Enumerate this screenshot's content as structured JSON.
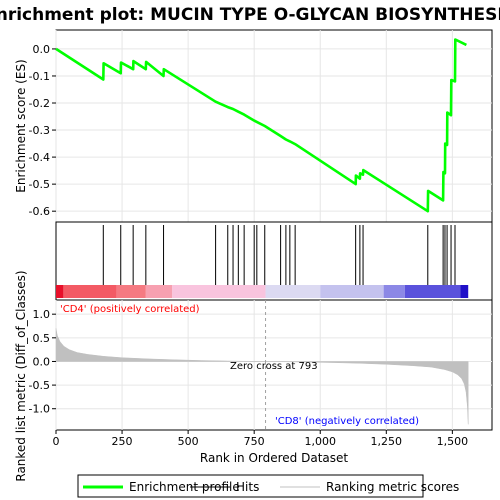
{
  "chart_data": {
    "type": "line",
    "title": "Enrichment plot: MUCIN TYPE O-GLYCAN BIOSYNTHESIS",
    "xlabel": "Rank in Ordered Dataset",
    "ylabel_top": "Enrichment score (ES)",
    "ylabel_bottom": "Ranked list metric (Diff_of_Classes)",
    "xlim": [
      0,
      1650
    ],
    "x_ticks": [
      0,
      250,
      500,
      750,
      1000,
      1250,
      1500
    ],
    "x_tick_labels": [
      "0",
      "250",
      "500",
      "750",
      "1,000",
      "1,250",
      "1,500"
    ],
    "es_ylim": [
      -0.64,
      0.07
    ],
    "es_ticks": [
      0.0,
      -0.1,
      -0.2,
      -0.3,
      -0.4,
      -0.5,
      -0.6
    ],
    "es_tick_labels": [
      "0.0",
      "-0.1",
      "-0.2",
      "-0.3",
      "-0.4",
      "-0.5",
      "-0.6"
    ],
    "metric_ylim": [
      -1.45,
      1.3
    ],
    "metric_ticks": [
      1.0,
      0.5,
      0.0,
      -0.5,
      -1.0
    ],
    "metric_tick_labels": [
      "1.0",
      "0.5",
      "0.0",
      "-0.5",
      "-1.0"
    ],
    "series": [
      {
        "name": "Enrichment profile",
        "color": "#00ff00",
        "x": [
          0,
          179,
          180,
          245,
          246,
          292,
          293,
          340,
          341,
          407,
          408,
          604,
          650,
          670,
          690,
          712,
          750,
          760,
          790,
          850,
          870,
          885,
          905,
          1134,
          1135,
          1150,
          1151,
          1162,
          1163,
          1407,
          1408,
          1465,
          1466,
          1472,
          1473,
          1480,
          1481,
          1495,
          1496,
          1510,
          1511,
          1553
        ],
        "y": [
          0.0,
          -0.113,
          -0.053,
          -0.09,
          -0.05,
          -0.075,
          -0.045,
          -0.075,
          -0.048,
          -0.1,
          -0.075,
          -0.195,
          -0.215,
          -0.222,
          -0.232,
          -0.243,
          -0.265,
          -0.27,
          -0.285,
          -0.322,
          -0.335,
          -0.342,
          -0.352,
          -0.5,
          -0.468,
          -0.48,
          -0.46,
          -0.465,
          -0.448,
          -0.6,
          -0.525,
          -0.56,
          -0.455,
          -0.46,
          -0.35,
          -0.355,
          -0.235,
          -0.245,
          -0.115,
          -0.12,
          0.035,
          0.015
        ]
      }
    ],
    "hits": [
      179,
      245,
      292,
      340,
      407,
      604,
      650,
      670,
      690,
      712,
      750,
      760,
      790,
      850,
      870,
      885,
      905,
      1134,
      1150,
      1162,
      1407,
      1465,
      1472,
      1480,
      1495,
      1510
    ],
    "metric_profile": {
      "x": [
        0,
        5,
        15,
        30,
        50,
        80,
        120,
        180,
        250,
        350,
        450,
        550,
        650,
        793,
        900,
        1050,
        1150,
        1250,
        1350,
        1420,
        1470,
        1500,
        1520,
        1535,
        1545,
        1552,
        1557,
        1560
      ],
      "y": [
        0.7,
        0.55,
        0.42,
        0.32,
        0.25,
        0.19,
        0.15,
        0.11,
        0.08,
        0.055,
        0.035,
        0.02,
        0.01,
        0.0,
        -0.01,
        -0.025,
        -0.04,
        -0.06,
        -0.09,
        -0.12,
        -0.17,
        -0.22,
        -0.28,
        -0.36,
        -0.48,
        -0.65,
        -0.95,
        -1.33
      ],
      "color": "#c0c0c0"
    },
    "zero_cross": 793,
    "zero_cross_label": "Zero cross at 793",
    "pos_label": "'CD4' (positively correlated)",
    "neg_label": "'CD8' (negatively correlated)",
    "pos_color": "#ff0000",
    "neg_color": "#0000ff",
    "n_total": 1560,
    "band_segments": [
      {
        "x0": 0,
        "x1": 28,
        "color": "#e8102a"
      },
      {
        "x0": 28,
        "x1": 230,
        "color": "#f35a64"
      },
      {
        "x0": 230,
        "x1": 340,
        "color": "#f57a82"
      },
      {
        "x0": 340,
        "x1": 440,
        "color": "#f7a0b0"
      },
      {
        "x0": 440,
        "x1": 793,
        "color": "#f9c4de"
      },
      {
        "x0": 793,
        "x1": 1000,
        "color": "#dcdaf2"
      },
      {
        "x0": 1000,
        "x1": 1240,
        "color": "#c4c2ee"
      },
      {
        "x0": 1240,
        "x1": 1320,
        "color": "#8c88e6"
      },
      {
        "x0": 1320,
        "x1": 1530,
        "color": "#5a52dc"
      },
      {
        "x0": 1530,
        "x1": 1560,
        "color": "#2010c8"
      }
    ],
    "legend": [
      {
        "label": "Enrichment profile",
        "color": "#00ff00",
        "kind": "line-thick"
      },
      {
        "label": "Hits",
        "color": "#000000",
        "kind": "line-thin"
      },
      {
        "label": "Ranking metric scores",
        "color": "#c0c0c0",
        "kind": "line-thin"
      }
    ],
    "grid": true,
    "legend_placement": "bottom"
  }
}
